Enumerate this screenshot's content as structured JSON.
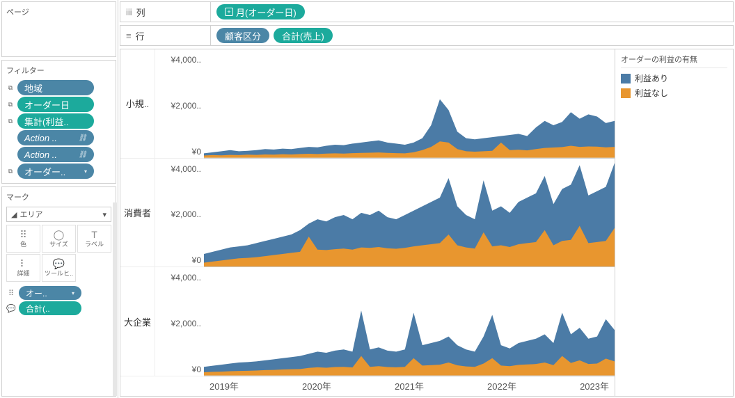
{
  "colors": {
    "series_a": "#4b7ba6",
    "series_b": "#e8962f",
    "pill_blue": "#4b86a6",
    "pill_green": "#1caa9c",
    "border": "#d0d0d0"
  },
  "left": {
    "pages_title": "ページ",
    "filters_title": "フィルター",
    "filters": [
      {
        "label": "地域",
        "color": "blue",
        "icon": "copy"
      },
      {
        "label": "オーダー日",
        "color": "green",
        "icon": "copy"
      },
      {
        "label": "集計(利益..",
        "color": "green",
        "icon": "copy"
      },
      {
        "label": "Action ..",
        "color": "blue",
        "italic": true,
        "suffix": "link"
      },
      {
        "label": "Action ..",
        "color": "blue",
        "italic": true,
        "suffix": "link"
      },
      {
        "label": "オーダー..",
        "color": "blue",
        "icon": "copy",
        "suffix": "chev"
      }
    ],
    "marks_title": "マーク",
    "marks_type": "エリア",
    "marks_cells": [
      {
        "icon": "⠿",
        "label": "色"
      },
      {
        "icon": "◯",
        "label": "サイズ"
      },
      {
        "icon": "T",
        "label": "ラベル"
      },
      {
        "icon": "⠇",
        "label": "詳細"
      },
      {
        "icon": "💬",
        "label": "ツールヒ.."
      }
    ],
    "mini_pills": [
      {
        "icon": "⠿",
        "label": "オー..",
        "color": "blue",
        "suffix": "chev"
      },
      {
        "icon": "💬",
        "label": "合計(..",
        "color": "green"
      }
    ]
  },
  "shelves": {
    "columns_label": "列",
    "rows_label": "行",
    "columns_pills": [
      {
        "label": "月(オーダー日)",
        "color": "green",
        "prefix": "plus"
      }
    ],
    "rows_pills": [
      {
        "label": "顧客区分",
        "color": "blue"
      },
      {
        "label": "合計(売上)",
        "color": "green"
      }
    ]
  },
  "chart": {
    "row_labels": [
      "小規..",
      "消費者",
      "大企業"
    ],
    "y_ticks": [
      "¥4,000..",
      "¥2,000..",
      "¥0"
    ],
    "x_ticks": [
      "2019年",
      "2020年",
      "2021年",
      "2022年",
      "2023年"
    ],
    "ymax": 5000,
    "panels": [
      {
        "a": [
          200,
          250,
          300,
          350,
          300,
          320,
          350,
          400,
          380,
          420,
          400,
          450,
          500,
          480,
          550,
          600,
          580,
          650,
          700,
          750,
          800,
          700,
          650,
          600,
          700,
          900,
          1500,
          2700,
          2200,
          1200,
          900,
          850,
          900,
          950,
          1000,
          1050,
          1100,
          1000,
          1400,
          1700,
          1500,
          1650,
          2100,
          1800,
          2000,
          1900,
          1600,
          1700
        ],
        "b": [
          100,
          120,
          110,
          130,
          120,
          140,
          130,
          150,
          140,
          160,
          150,
          170,
          180,
          170,
          190,
          200,
          190,
          210,
          220,
          230,
          240,
          220,
          210,
          200,
          250,
          350,
          500,
          750,
          700,
          400,
          300,
          280,
          300,
          320,
          700,
          350,
          370,
          340,
          400,
          450,
          470,
          490,
          550,
          500,
          520,
          510,
          480,
          500
        ]
      },
      {
        "a": [
          600,
          700,
          800,
          900,
          950,
          1000,
          1100,
          1200,
          1300,
          1400,
          1500,
          1700,
          2000,
          2200,
          2100,
          2300,
          2400,
          2200,
          2500,
          2400,
          2600,
          2300,
          2200,
          2400,
          2600,
          2800,
          3000,
          3200,
          4100,
          2800,
          2400,
          2200,
          4000,
          2600,
          2800,
          2500,
          3000,
          3200,
          3400,
          4200,
          2900,
          3600,
          3800,
          4700,
          3300,
          3500,
          3700,
          4800
        ],
        "b": [
          200,
          250,
          300,
          350,
          400,
          420,
          450,
          500,
          550,
          600,
          650,
          700,
          1400,
          800,
          780,
          820,
          850,
          800,
          900,
          880,
          920,
          860,
          840,
          880,
          950,
          1000,
          1050,
          1100,
          1500,
          1000,
          900,
          850,
          1600,
          950,
          1000,
          920,
          1050,
          1100,
          1150,
          1700,
          1000,
          1200,
          1250,
          1900,
          1100,
          1150,
          1200,
          1800
        ]
      },
      {
        "a": [
          400,
          450,
          500,
          550,
          600,
          620,
          650,
          700,
          750,
          800,
          850,
          900,
          1000,
          1100,
          1050,
          1150,
          1200,
          1100,
          3000,
          1200,
          1300,
          1150,
          1100,
          1200,
          2900,
          1400,
          1500,
          1600,
          1800,
          1400,
          1200,
          1100,
          1800,
          2800,
          1400,
          1250,
          1500,
          1600,
          1700,
          1900,
          1500,
          2900,
          1900,
          2200,
          1700,
          1800,
          2600,
          2100
        ],
        "b": [
          150,
          170,
          180,
          200,
          210,
          220,
          230,
          250,
          260,
          280,
          290,
          300,
          350,
          380,
          360,
          390,
          400,
          370,
          900,
          400,
          430,
          390,
          380,
          400,
          800,
          460,
          480,
          500,
          600,
          470,
          420,
          400,
          550,
          800,
          460,
          430,
          490,
          510,
          530,
          600,
          480,
          900,
          580,
          700,
          530,
          550,
          780,
          650
        ]
      }
    ]
  },
  "legend": {
    "title": "オーダーの利益の有無",
    "items": [
      {
        "label": "利益あり",
        "color": "#4b7ba6"
      },
      {
        "label": "利益なし",
        "color": "#e8962f"
      }
    ]
  }
}
